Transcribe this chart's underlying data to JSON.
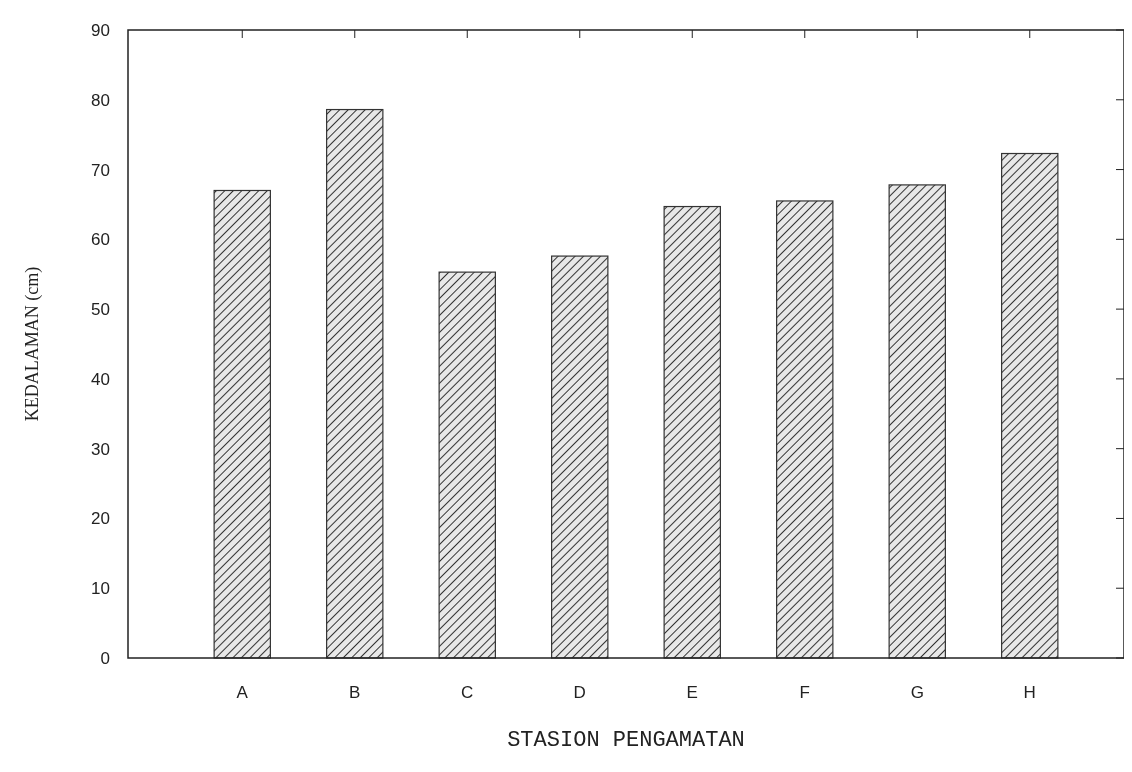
{
  "chart_data": {
    "type": "bar",
    "xlabel": "STASION PENGAMATAN",
    "ylabel": "KEDALAMAN (cm)",
    "categories": [
      "A",
      "B",
      "C",
      "D",
      "E",
      "F",
      "G",
      "H"
    ],
    "values": [
      67,
      78.6,
      55.3,
      57.6,
      64.7,
      65.5,
      67.8,
      72.3
    ],
    "color": "#333333",
    "ylim": [
      0,
      90
    ],
    "yticks": [
      0,
      10,
      20,
      30,
      40,
      50,
      60,
      70,
      80,
      90
    ],
    "grid": false
  }
}
